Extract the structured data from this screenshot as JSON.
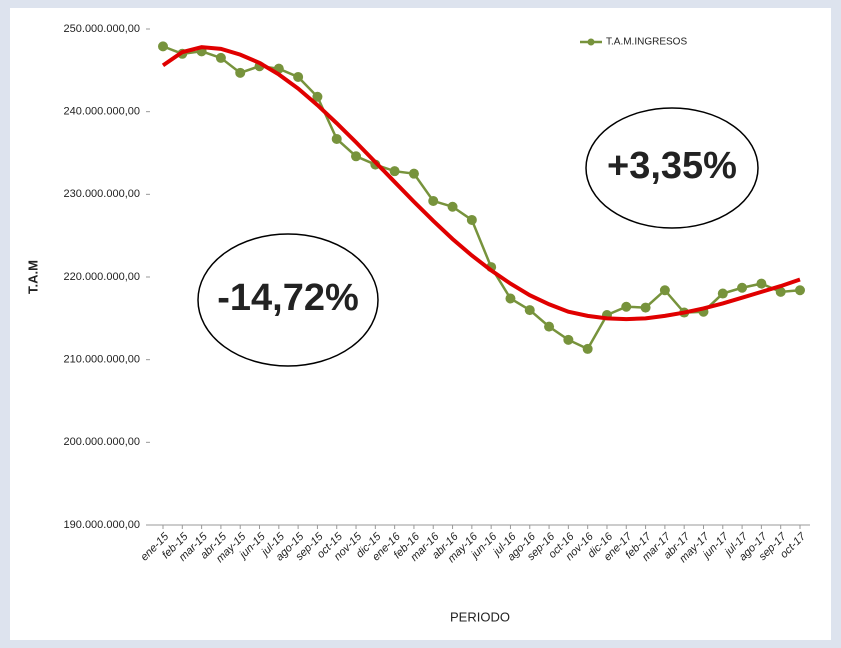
{
  "chart_data": {
    "type": "line",
    "y_axis_label": "T.A.M",
    "x_axis_label": "PERIODO",
    "categories": [
      "ene-15",
      "feb-15",
      "mar-15",
      "abr-15",
      "may-15",
      "jun-15",
      "jul-15",
      "ago-15",
      "sep-15",
      "oct-15",
      "nov-15",
      "dic-15",
      "ene-16",
      "feb-16",
      "mar-16",
      "abr-16",
      "may-16",
      "jun-16",
      "jul-16",
      "ago-16",
      "sep-16",
      "oct-16",
      "nov-16",
      "dic-16",
      "ene-17",
      "feb-17",
      "mar-17",
      "abr-17",
      "may-17",
      "jun-17",
      "jul-17",
      "ago-17",
      "sep-17",
      "oct-17"
    ],
    "series": [
      {
        "name": "T.A.M.INGRESOS",
        "color": "#77933c",
        "values": [
          247900000,
          247000000,
          247300000,
          246500000,
          244700000,
          245500000,
          245200000,
          244200000,
          241800000,
          236700000,
          234600000,
          233600000,
          232800000,
          232500000,
          229200000,
          228500000,
          226900000,
          221200000,
          217400000,
          216000000,
          214000000,
          212400000,
          211300000,
          215400000,
          216400000,
          216300000,
          218400000,
          215700000,
          215800000,
          218000000,
          218700000,
          219200000,
          218200000,
          218400000
        ]
      }
    ],
    "trendline": {
      "color": "#e00000",
      "values": [
        245600000,
        247200000,
        247800000,
        247600000,
        246900000,
        245900000,
        244500000,
        242800000,
        240800000,
        238600000,
        236300000,
        233900000,
        231500000,
        229100000,
        226800000,
        224600000,
        222600000,
        220800000,
        219200000,
        217800000,
        216700000,
        215800000,
        215300000,
        215000000,
        214900000,
        215000000,
        215300000,
        215700000,
        216200000,
        216800000,
        217500000,
        218200000,
        218900000,
        219700000
      ]
    },
    "ylim": [
      190000000,
      250000000
    ],
    "yticks": [
      {
        "value": 190000000,
        "label": "190.000.000,00"
      },
      {
        "value": 200000000,
        "label": "200.000.000,00"
      },
      {
        "value": 210000000,
        "label": "210.000.000,00"
      },
      {
        "value": 220000000,
        "label": "220.000.000,00"
      },
      {
        "value": 230000000,
        "label": "230.000.000,00"
      },
      {
        "value": 240000000,
        "label": "240.000.000,00"
      },
      {
        "value": 250000000,
        "label": "250.000.000,00"
      }
    ],
    "annotations": [
      "+3,35%",
      "-14,72%"
    ],
    "legend_position": "top-right"
  }
}
